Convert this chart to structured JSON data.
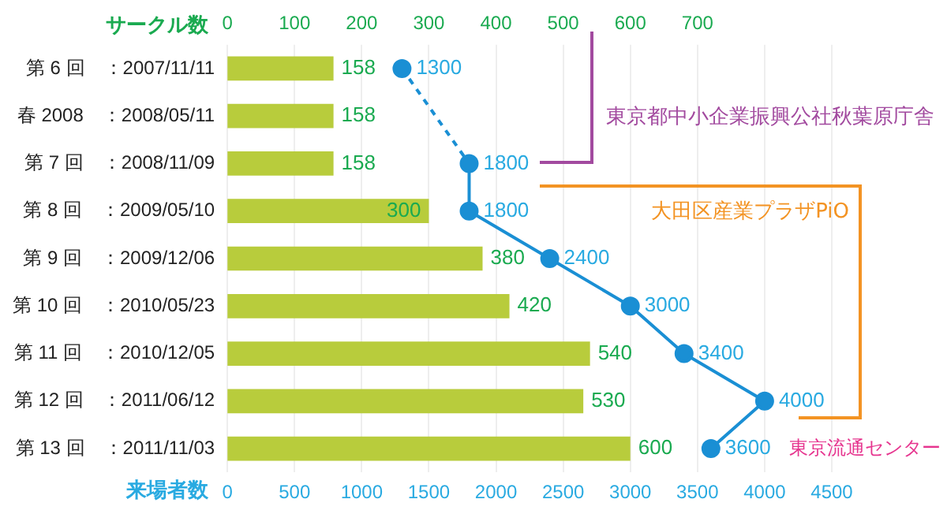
{
  "chart_data": {
    "type": "bar",
    "orientation": "horizontal",
    "categories": [
      "第 6 回　：2007/11/11",
      "春 2008　：2008/05/11",
      "第 7 回　：2008/11/09",
      "第 8 回　：2009/05/10",
      "第 9 回　：2009/12/06",
      "第 10 回　：2010/05/23",
      "第 11 回　：2010/12/05",
      "第 12 回　：2011/06/12",
      "第 13 回　：2011/11/03"
    ],
    "series": [
      {
        "axis": "x2",
        "color": "#b8cc3c",
        "values": [
          158,
          158,
          158,
          300,
          380,
          420,
          540,
          530,
          600
        ]
      },
      {
        "type": "line",
        "color": "#1a8fd4",
        "values": [
          1300,
          null,
          1800,
          1800,
          2400,
          3000,
          3400,
          4000,
          3600
        ]
      }
    ],
    "xlabel": "来場者数",
    "xlim": [
      0,
      4500
    ],
    "xticks": [
      0,
      500,
      1000,
      1500,
      2000,
      2500,
      3000,
      3500,
      4000,
      4500
    ],
    "x2label": "サークル数",
    "x2lim": [
      0,
      900
    ],
    "x2ticks": [
      0,
      100,
      200,
      300,
      400,
      500,
      600,
      700
    ],
    "annotations": [
      "東京都中小企業振興公社秋葉原庁舎",
      "大田区産業プラザPiO",
      "東京流通センター"
    ],
    "data_labels": true,
    "grid": "x",
    "legend": false,
    "marker": "circle",
    "line_style": "solid"
  }
}
